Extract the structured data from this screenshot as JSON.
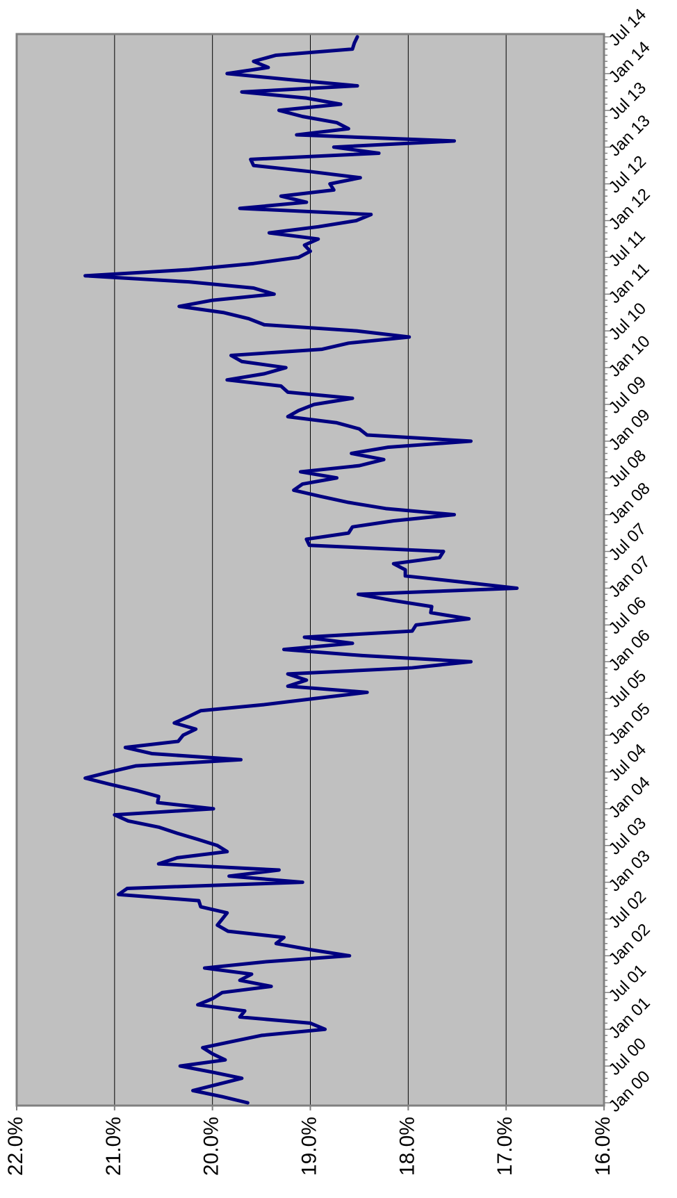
{
  "chart_data": {
    "type": "line",
    "categories": [
      "Jan 00",
      null,
      null,
      null,
      null,
      null,
      "Jul 00",
      null,
      null,
      null,
      null,
      null,
      "Jan 01",
      null,
      null,
      null,
      null,
      null,
      "Jul 01",
      null,
      null,
      null,
      null,
      null,
      "Jan 02",
      null,
      null,
      null,
      null,
      null,
      "Jul 02",
      null,
      null,
      null,
      null,
      null,
      "Jan 03",
      null,
      null,
      null,
      null,
      null,
      "Jul 03",
      null,
      null,
      null,
      null,
      null,
      "Jan 04",
      null,
      null,
      null,
      null,
      null,
      "Jul 04",
      null,
      null,
      null,
      null,
      null,
      "Jan 05",
      null,
      null,
      null,
      null,
      null,
      "Jul 05",
      null,
      null,
      null,
      null,
      null,
      "Jan 06",
      null,
      null,
      null,
      null,
      null,
      "Jul 06",
      null,
      null,
      null,
      null,
      null,
      "Jan 07",
      null,
      null,
      null,
      null,
      null,
      "Jul 07",
      null,
      null,
      null,
      null,
      null,
      "Jan 08",
      null,
      null,
      null,
      null,
      null,
      "Jul 08",
      null,
      null,
      null,
      null,
      null,
      "Jan 09",
      null,
      null,
      null,
      null,
      null,
      "Jul 09",
      null,
      null,
      null,
      null,
      null,
      "Jan 10",
      null,
      null,
      null,
      null,
      null,
      "Jul 10",
      null,
      null,
      null,
      null,
      null,
      "Jan 11",
      null,
      null,
      null,
      null,
      null,
      "Jul 11",
      null,
      null,
      null,
      null,
      null,
      "Jan 12",
      null,
      null,
      null,
      null,
      null,
      "Jul 12",
      null,
      null,
      null,
      null,
      null,
      "Jan 13",
      null,
      null,
      null,
      null,
      null,
      "Jul 13",
      null,
      null,
      null,
      null,
      null,
      "Jan 14",
      null,
      null,
      null,
      null,
      null,
      "Jul 14"
    ],
    "values": [
      19.64,
      19.9,
      20.2,
      19.95,
      19.7,
      20.0,
      20.33,
      19.87,
      20.0,
      20.1,
      19.8,
      19.5,
      18.85,
      19.0,
      19.72,
      19.67,
      20.15,
      20.0,
      19.9,
      19.4,
      19.72,
      19.6,
      20.08,
      19.47,
      18.6,
      19.0,
      19.35,
      19.27,
      19.84,
      19.95,
      19.9,
      19.85,
      20.12,
      20.14,
      20.96,
      20.87,
      19.08,
      19.83,
      19.32,
      20.55,
      20.36,
      19.85,
      19.95,
      20.15,
      20.36,
      20.55,
      20.86,
      21.0,
      19.99,
      20.56,
      20.55,
      20.78,
      21.05,
      21.3,
      21.05,
      20.78,
      19.71,
      20.62,
      20.89,
      20.35,
      20.3,
      20.17,
      20.39,
      20.25,
      20.12,
      19.47,
      18.95,
      18.42,
      19.23,
      19.04,
      19.23,
      17.96,
      17.36,
      18.47,
      19.27,
      18.57,
      19.06,
      17.96,
      17.92,
      17.38,
      17.77,
      17.76,
      18.16,
      18.51,
      16.89,
      17.45,
      18.03,
      18.03,
      18.15,
      17.68,
      17.64,
      19.01,
      19.04,
      18.61,
      18.57,
      18.15,
      17.53,
      18.23,
      18.61,
      18.9,
      19.17,
      19.08,
      18.73,
      19.1,
      18.5,
      18.25,
      18.58,
      18.21,
      17.36,
      18.42,
      18.5,
      18.73,
      19.23,
      19.12,
      18.96,
      18.57,
      19.23,
      19.3,
      19.85,
      19.47,
      19.25,
      19.7,
      19.81,
      18.88,
      18.61,
      17.99,
      18.53,
      19.47,
      19.63,
      19.89,
      20.34,
      20.0,
      19.37,
      19.58,
      20.24,
      21.3,
      20.24,
      19.58,
      19.12,
      19.0,
      19.06,
      18.92,
      19.42,
      18.92,
      18.53,
      18.38,
      19.72,
      19.04,
      19.3,
      18.76,
      18.8,
      18.49,
      19.0,
      19.58,
      19.61,
      18.3,
      18.76,
      17.53,
      19.14,
      18.61,
      18.73,
      19.08,
      19.32,
      18.69,
      19.04,
      19.7,
      18.52,
      19.2,
      19.85,
      19.43,
      19.58,
      19.35,
      18.57,
      18.55,
      18.52
    ],
    "color": "#000080",
    "background": "#c0c0c0",
    "ylim": [
      16,
      22
    ],
    "yticks": [
      {
        "value": 22,
        "label": "22.0%"
      },
      {
        "value": 21,
        "label": "21.0%"
      },
      {
        "value": 20,
        "label": "20.0%"
      },
      {
        "value": 19,
        "label": "19.0%"
      },
      {
        "value": 18,
        "label": "18.0%"
      },
      {
        "value": 17,
        "label": "17.0%"
      },
      {
        "value": 16,
        "label": "16.0%"
      }
    ],
    "grid": true,
    "orientation": "rotated"
  }
}
